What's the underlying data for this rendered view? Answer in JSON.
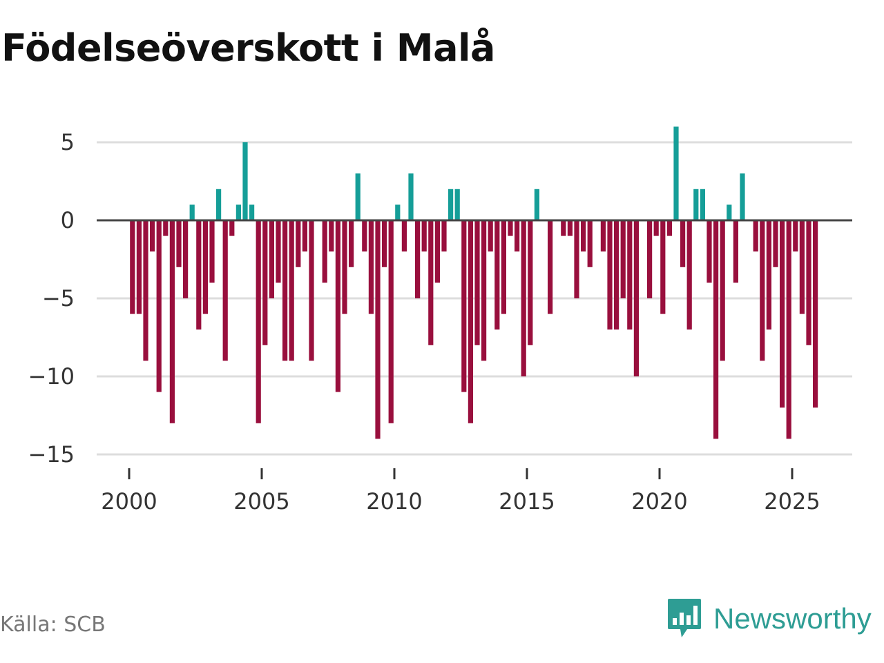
{
  "title": "Födelseöverskott i Malå",
  "source": "Källa: SCB",
  "brand": {
    "name": "Newsworthy",
    "icon": "newsworthy-logo-icon"
  },
  "colors": {
    "positive": "#159e98",
    "negative": "#990f3d",
    "zero_line": "#444444",
    "grid": "#dddddd",
    "brand": "#2e9d94"
  },
  "chart_data": {
    "type": "bar",
    "title": "Födelseöverskott i Malå",
    "xlabel": "",
    "ylabel": "",
    "ylim": [
      -15,
      6
    ],
    "xlim": [
      1999.1,
      2027.4
    ],
    "y_ticks": [
      5,
      0,
      -5,
      -10,
      -15
    ],
    "y_tick_labels": [
      "5",
      "0",
      "−5",
      "−10",
      "−15"
    ],
    "x_ticks": [
      2000,
      2005,
      2010,
      2015,
      2020,
      2025
    ],
    "x_tick_labels": [
      "2000",
      "2005",
      "2010",
      "2015",
      "2020",
      "2025"
    ],
    "grid": true,
    "start": 2000.0,
    "step": 0.25,
    "x": [
      "2000 K1",
      "2000 K2",
      "2000 K3",
      "2000 K4",
      "2001 K1",
      "2001 K2",
      "2001 K3",
      "2001 K4",
      "2002 K1",
      "2002 K2",
      "2002 K3",
      "2002 K4",
      "2003 K1",
      "2003 K2",
      "2003 K3",
      "2003 K4",
      "2004 K1",
      "2004 K2",
      "2004 K3",
      "2004 K4",
      "2005 K1",
      "2005 K2",
      "2005 K3",
      "2005 K4",
      "2006 K1",
      "2006 K2",
      "2006 K3",
      "2006 K4",
      "2007 K1",
      "2007 K2",
      "2007 K3",
      "2007 K4",
      "2008 K1",
      "2008 K2",
      "2008 K3",
      "2008 K4",
      "2009 K1",
      "2009 K2",
      "2009 K3",
      "2009 K4",
      "2010 K1",
      "2010 K2",
      "2010 K3",
      "2010 K4",
      "2011 K1",
      "2011 K2",
      "2011 K3",
      "2011 K4",
      "2012 K1",
      "2012 K2",
      "2012 K3",
      "2012 K4",
      "2013 K1",
      "2013 K2",
      "2013 K3",
      "2013 K4",
      "2014 K1",
      "2014 K2",
      "2014 K3",
      "2014 K4",
      "2015 K1",
      "2015 K2",
      "2015 K3",
      "2015 K4",
      "2016 K1",
      "2016 K2",
      "2016 K3",
      "2016 K4",
      "2017 K1",
      "2017 K2",
      "2017 K3",
      "2017 K4",
      "2018 K1",
      "2018 K2",
      "2018 K3",
      "2018 K4",
      "2019 K1",
      "2019 K2",
      "2019 K3",
      "2019 K4",
      "2020 K1",
      "2020 K2",
      "2020 K3",
      "2020 K4",
      "2021 K1",
      "2021 K2",
      "2021 K3",
      "2021 K4",
      "2022 K1",
      "2022 K2",
      "2022 K3",
      "2022 K4",
      "2023 K1",
      "2023 K2",
      "2023 K3",
      "2023 K4",
      "2024 K1",
      "2024 K2",
      "2024 K3",
      "2024 K4",
      "2025 K1",
      "2025 K2",
      "2025 K3",
      "2025 K4"
    ],
    "values": [
      -6,
      -6,
      -9,
      -2,
      -11,
      -1,
      -13,
      -3,
      -5,
      1,
      -7,
      -6,
      -4,
      2,
      -9,
      -1,
      1,
      5,
      1,
      -13,
      -8,
      -5,
      -4,
      -9,
      -9,
      -3,
      -2,
      -9,
      0,
      -4,
      -2,
      -11,
      -6,
      -3,
      3,
      -2,
      -6,
      -14,
      -3,
      -13,
      1,
      -2,
      3,
      -5,
      -2,
      -8,
      -4,
      -2,
      2,
      2,
      -11,
      -13,
      -8,
      -9,
      -2,
      -7,
      -6,
      -1,
      -2,
      -10,
      -8,
      2,
      0,
      -6,
      0,
      -1,
      -1,
      -5,
      -2,
      -3,
      0,
      -2,
      -7,
      -7,
      -5,
      -7,
      -10,
      0,
      -5,
      -1,
      -6,
      -1,
      6,
      -3,
      -7,
      2,
      2,
      -4,
      -14,
      -9,
      1,
      -4,
      3,
      0,
      -2,
      -9,
      -7,
      -3,
      -12,
      -14,
      -2,
      -6,
      -8,
      -12
    ]
  }
}
